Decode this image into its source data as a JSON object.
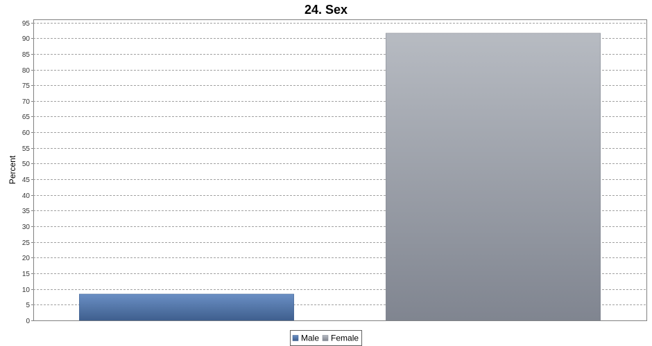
{
  "chart_data": {
    "type": "bar",
    "title": "24. Sex",
    "xlabel": "",
    "ylabel": "Percent",
    "ylim": [
      0,
      96
    ],
    "yticks": [
      0,
      5,
      10,
      15,
      20,
      25,
      30,
      35,
      40,
      45,
      50,
      55,
      60,
      65,
      70,
      75,
      80,
      85,
      90,
      95
    ],
    "grid": true,
    "legend_position": "bottom",
    "series": [
      {
        "name": "Male",
        "value": 8.4,
        "color_top": "#6a8fc4",
        "color_bottom": "#3f5f8e"
      },
      {
        "name": "Female",
        "value": 91.6,
        "color_top": "#b7bbc2",
        "color_bottom": "#808590"
      }
    ]
  }
}
